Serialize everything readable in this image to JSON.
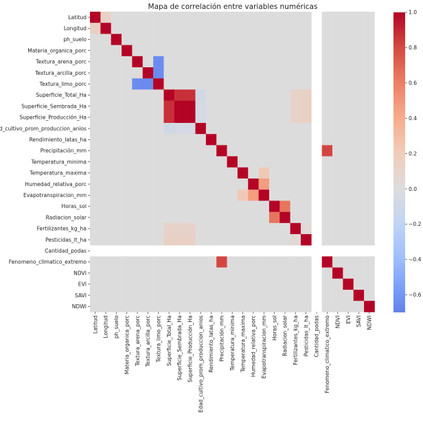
{
  "chart_data": {
    "type": "heatmap",
    "title": "Mapa de correlación entre variables numéricas",
    "xlabel": "",
    "ylabel": "",
    "colormap": "coolwarm",
    "colorbar": {
      "range": [
        -0.7,
        1.0
      ],
      "ticks": [
        1.0,
        0.8,
        0.6,
        0.4,
        0.2,
        0.0,
        -0.2,
        -0.4,
        -0.6
      ],
      "tick_labels": [
        "1.0",
        "0.8",
        "0.6",
        "0.4",
        "0.2",
        "0.0",
        "−0.2",
        "−0.4",
        "−0.6"
      ],
      "placement": "right"
    },
    "variables": [
      "Latitud",
      "Longitud",
      "ph_suelo",
      "Materia_organica_porc",
      "Textura_arena_porc",
      "Textura_arcilla_porc",
      "Textura_limo_porc",
      "Superficie_Total_Ha",
      "Superficie_Sembrada_Ha",
      "Superficie_Producción_Ha",
      "Edad_cultivo_prom_produccion_anios",
      "Rendimiento_latas_ha",
      "Precipitación_mm",
      "Temperatura_minima",
      "Temperatura_maxima",
      "Humedad_relativa_porc",
      "Evapotranspiracion_mm",
      "Horas_sol",
      "Radiacion_solar",
      "Fertilizantes_kg_ha",
      "Pesticidas_lt_ha",
      "Cantidad_podas",
      "Fenomeno_climatico_extremo",
      "NDVI",
      "EVI",
      "SAVI",
      "NDWI"
    ],
    "nan_variables": [
      "Cantidad_podas"
    ],
    "default_offdiag": 0.0,
    "pairs": [
      {
        "a": "Latitud",
        "b": "Longitud",
        "r": 0.12
      },
      {
        "a": "Textura_arena_porc",
        "b": "Textura_limo_porc",
        "r": -0.7
      },
      {
        "a": "Textura_arcilla_porc",
        "b": "Textura_limo_porc",
        "r": -0.7
      },
      {
        "a": "Superficie_Total_Ha",
        "b": "Superficie_Sembrada_Ha",
        "r": 0.88
      },
      {
        "a": "Superficie_Total_Ha",
        "b": "Superficie_Producción_Ha",
        "r": 0.88
      },
      {
        "a": "Superficie_Sembrada_Ha",
        "b": "Superficie_Producción_Ha",
        "r": 1.0
      },
      {
        "a": "Superficie_Total_Ha",
        "b": "Edad_cultivo_prom_produccion_anios",
        "r": -0.08
      },
      {
        "a": "Superficie_Sembrada_Ha",
        "b": "Edad_cultivo_prom_produccion_anios",
        "r": -0.06
      },
      {
        "a": "Superficie_Producción_Ha",
        "b": "Edad_cultivo_prom_produccion_anios",
        "r": -0.06
      },
      {
        "a": "Superficie_Total_Ha",
        "b": "Fertilizantes_kg_ha",
        "r": 0.1
      },
      {
        "a": "Superficie_Sembrada_Ha",
        "b": "Fertilizantes_kg_ha",
        "r": 0.1
      },
      {
        "a": "Superficie_Producción_Ha",
        "b": "Fertilizantes_kg_ha",
        "r": 0.1
      },
      {
        "a": "Superficie_Total_Ha",
        "b": "Pesticidas_lt_ha",
        "r": 0.13
      },
      {
        "a": "Superficie_Sembrada_Ha",
        "b": "Pesticidas_lt_ha",
        "r": 0.13
      },
      {
        "a": "Superficie_Producción_Ha",
        "b": "Pesticidas_lt_ha",
        "r": 0.13
      },
      {
        "a": "Temperatura_maxima",
        "b": "Evapotranspiracion_mm",
        "r": 0.2
      },
      {
        "a": "Humedad_relativa_porc",
        "b": "Evapotranspiracion_mm",
        "r": 0.48
      },
      {
        "a": "Horas_sol",
        "b": "Radiacion_solar",
        "r": 0.66
      },
      {
        "a": "Precipitación_mm",
        "b": "Fenomeno_climatico_extremo",
        "r": 0.82
      },
      {
        "a": "Fertilizantes_kg_ha",
        "b": "Pesticidas_lt_ha",
        "r": 0.03
      }
    ]
  }
}
